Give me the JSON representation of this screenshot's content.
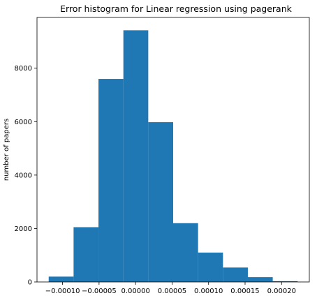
{
  "chart_data": {
    "type": "bar",
    "subtype": "histogram",
    "title": "Error histogram for Linear regression using pagerank",
    "xlabel": "",
    "ylabel": "number of papers",
    "bar_color": "#1f77b4",
    "bin_edges": [
      -0.000119,
      -8.49e-05,
      -5.08e-05,
      -1.67e-05,
      1.74e-05,
      5.15e-05,
      8.56e-05,
      0.0001197,
      0.0001538,
      0.0001879,
      0.000222
    ],
    "values": [
      200,
      2050,
      7600,
      9420,
      5980,
      2200,
      1100,
      540,
      180,
      30
    ],
    "xlim": [
      -0.000135,
      0.000238
    ],
    "ylim": [
      0,
      9900
    ],
    "xticks": [
      -0.0001,
      -5e-05,
      0.0,
      5e-05,
      0.0001,
      0.00015,
      0.0002
    ],
    "xtick_labels": [
      "−0.00010",
      "−0.00005",
      "0.00000",
      "0.00005",
      "0.00010",
      "0.00015",
      "0.00020"
    ],
    "yticks": [
      0,
      2000,
      4000,
      6000,
      8000
    ],
    "ytick_labels": [
      "0",
      "2000",
      "4000",
      "6000",
      "8000"
    ],
    "grid": false
  }
}
